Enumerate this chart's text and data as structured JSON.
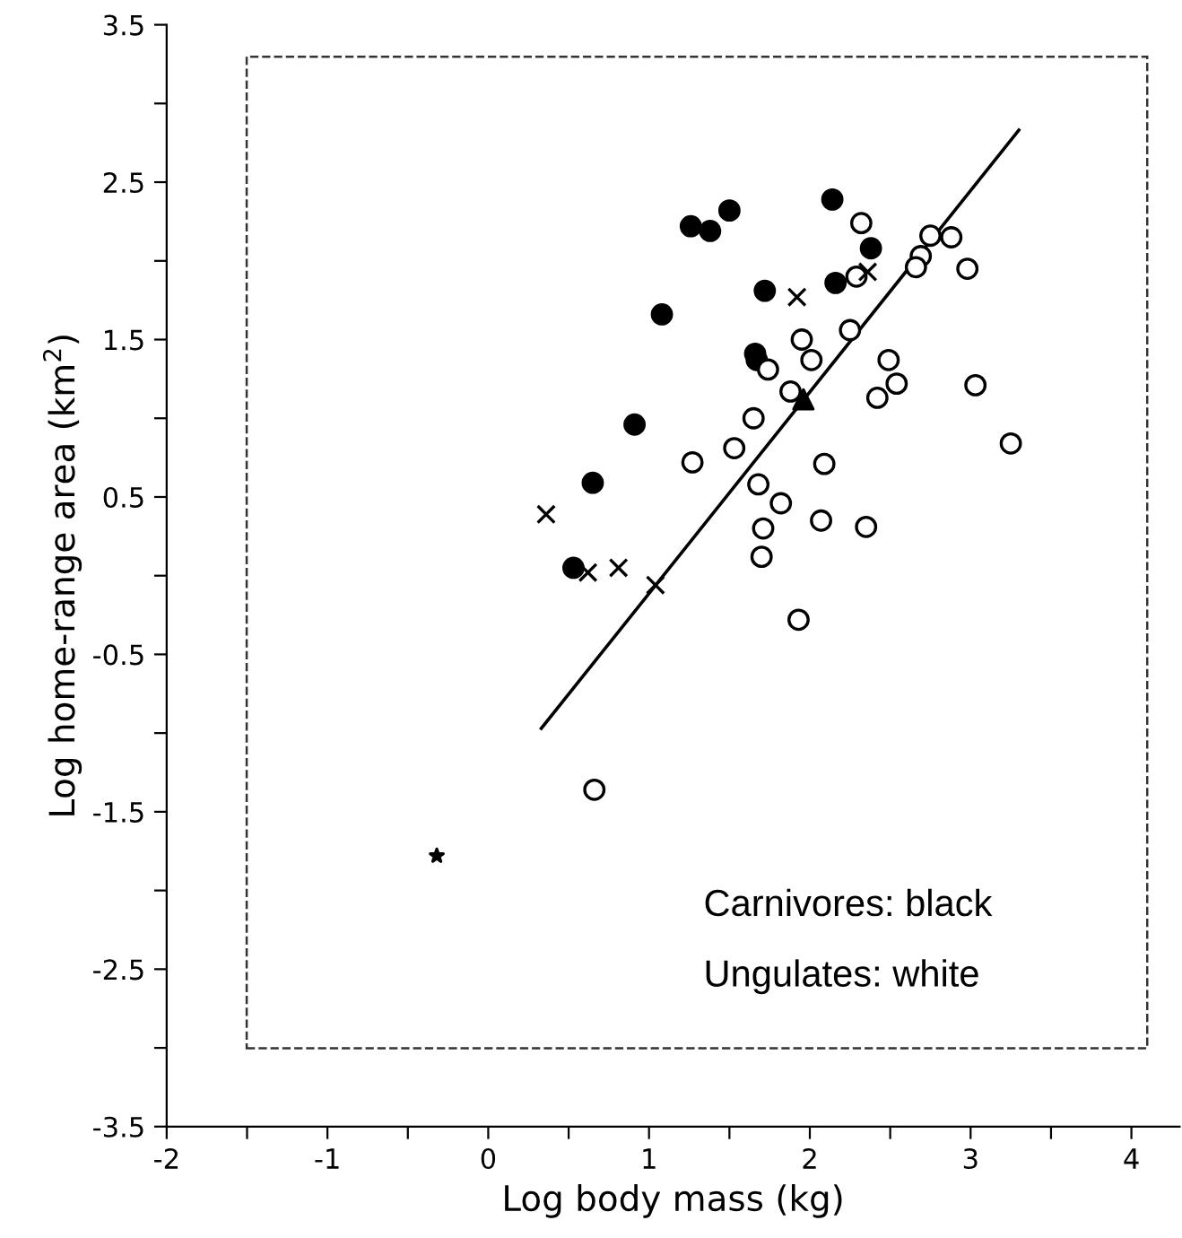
{
  "chart_data": {
    "type": "scatter",
    "xlabel": "Log body mass (kg)",
    "ylabel": "Log home-range area (km$^{2}$)",
    "xlim": [
      -2,
      4.3
    ],
    "ylim": [
      -3.5,
      3.5
    ],
    "xticks": [
      -2,
      {
        "value": -1.5,
        "label": null
      },
      -1,
      {
        "value": -0.5,
        "label": null
      },
      0,
      {
        "value": 0.5,
        "label": null
      },
      1,
      {
        "value": 1.5,
        "label": null
      },
      2,
      {
        "value": 2.5,
        "label": null
      },
      3,
      {
        "value": 3.5,
        "label": null
      },
      4
    ],
    "yticks": [
      -3.5,
      {
        "value": -3,
        "label": null
      },
      -2.5,
      {
        "value": -2,
        "label": null
      },
      -1.5,
      {
        "value": -1,
        "label": null
      },
      -0.5,
      {
        "value": 0,
        "label": null
      },
      0.5,
      {
        "value": 1,
        "label": null
      },
      1.5,
      {
        "value": 2,
        "label": null
      },
      2.5,
      {
        "value": 3,
        "label": null
      },
      3.5
    ],
    "grid": false,
    "legend": false,
    "annotations": [
      "Carnivores: black",
      "Ungulates: white"
    ],
    "series": [
      {
        "marker": "circle",
        "color": "#000000",
        "x": [
          1.5,
          1.26,
          1.38,
          1.72,
          1.08,
          1.66,
          1.67,
          0.91,
          0.65,
          0.53,
          2.14,
          2.38,
          2.16
        ],
        "values": [
          2.32,
          2.22,
          2.19,
          1.81,
          1.66,
          1.41,
          1.37,
          0.96,
          0.59,
          0.05,
          2.39,
          2.08,
          1.86
        ]
      },
      {
        "marker": "circle",
        "color": "#ffffff",
        "x": [
          1.74,
          1.65,
          1.53,
          1.27,
          1.68,
          1.71,
          1.7,
          2.32,
          2.75,
          2.88,
          2.69,
          2.66,
          2.98,
          2.29,
          2.25,
          1.95,
          2.01,
          2.49,
          2.54,
          3.03,
          2.42,
          1.88,
          3.25,
          2.09,
          1.82,
          2.07,
          2.35,
          1.93,
          0.66
        ],
        "values": [
          1.31,
          1.0,
          0.81,
          0.72,
          0.58,
          0.3,
          0.12,
          2.24,
          2.16,
          2.15,
          2.03,
          1.96,
          1.95,
          1.9,
          1.56,
          1.5,
          1.37,
          1.37,
          1.22,
          1.21,
          1.13,
          1.17,
          0.84,
          0.71,
          0.46,
          0.35,
          0.31,
          -0.28,
          -1.36
        ]
      },
      {
        "marker": "cross",
        "color": "#000000",
        "x": [
          0.36,
          0.62,
          0.81,
          1.04,
          2.36,
          1.92
        ],
        "values": [
          0.39,
          0.02,
          0.05,
          -0.06,
          1.93,
          1.77
        ]
      },
      {
        "marker": "triangle",
        "color": "#000000",
        "x": [
          1.96
        ],
        "values": [
          1.12
        ]
      },
      {
        "marker": "star",
        "color": "#000000",
        "x": [
          -0.32
        ],
        "values": [
          -1.78
        ]
      },
      {
        "type": "line",
        "marker": "none",
        "line_style": "solid",
        "color": "#000000",
        "x": [
          0.33,
          3.3
        ],
        "values": [
          -0.97,
          2.83
        ]
      }
    ]
  }
}
